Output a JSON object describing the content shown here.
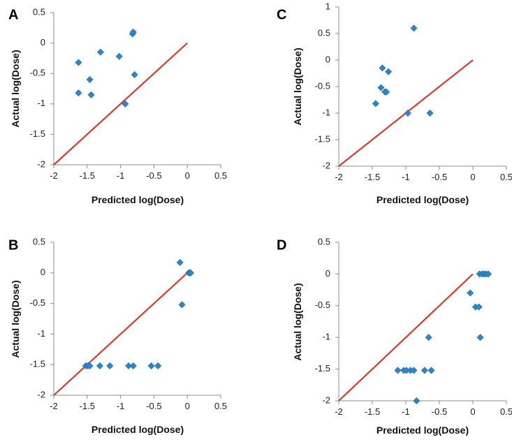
{
  "colors": {
    "points": "#2E86C8",
    "line": "#D93A30",
    "axis": "#8C8C8C",
    "text": "#222222"
  },
  "chart_data": [
    {
      "panel": "A",
      "type": "scatter",
      "xlabel": "Predicted log(Dose)",
      "ylabel": "Actual log(Dose)",
      "xlim": [
        -2,
        0.5
      ],
      "ylim": [
        -2,
        0.5
      ],
      "xticks": [
        "-2",
        "-1.5",
        "-1",
        "-0.5",
        "0",
        "0.5"
      ],
      "yticks": [
        "0.5",
        "0",
        "-0.5",
        "-1",
        "-1.5",
        "-2"
      ],
      "points": [
        [
          -1.63,
          -0.32
        ],
        [
          -1.63,
          -0.82
        ],
        [
          -1.46,
          -0.6
        ],
        [
          -1.44,
          -0.85
        ],
        [
          -1.3,
          -0.15
        ],
        [
          -1.02,
          -0.22
        ],
        [
          -0.93,
          -1.0
        ],
        [
          -0.82,
          0.15
        ],
        [
          -0.81,
          0.18
        ],
        [
          -0.79,
          -0.52
        ]
      ],
      "reference_line": [
        [
          -2,
          -2
        ],
        [
          0,
          0
        ]
      ]
    },
    {
      "panel": "B",
      "type": "scatter",
      "xlabel": "Predicted log(Dose)",
      "ylabel": "Actual log(Dose)",
      "xlim": [
        -2,
        0.5
      ],
      "ylim": [
        -2,
        0.5
      ],
      "xticks": [
        "-2",
        "-1.5",
        "-1",
        "-0.5",
        "0",
        "0.5"
      ],
      "yticks": [
        "0.5",
        "0",
        "-0.5",
        "-1",
        "-1.5",
        "-2"
      ],
      "points": [
        [
          -1.52,
          -1.52
        ],
        [
          -1.49,
          -1.52
        ],
        [
          -1.46,
          -1.52
        ],
        [
          -1.31,
          -1.52
        ],
        [
          -1.16,
          -1.52
        ],
        [
          -0.88,
          -1.52
        ],
        [
          -0.81,
          -1.52
        ],
        [
          -0.54,
          -1.52
        ],
        [
          -0.44,
          -1.52
        ],
        [
          -0.11,
          0.17
        ],
        [
          -0.08,
          -0.52
        ],
        [
          0.02,
          0.0
        ],
        [
          0.04,
          0.0
        ],
        [
          0.05,
          0.0
        ]
      ],
      "reference_line": [
        [
          -2,
          -2
        ],
        [
          0,
          0
        ]
      ]
    },
    {
      "panel": "C",
      "type": "scatter",
      "xlabel": "Predicted log(Dose)",
      "ylabel": "Actual log(Dose)",
      "xlim": [
        -2,
        0.5
      ],
      "ylim": [
        -2,
        1
      ],
      "xticks": [
        "-2",
        "-1.5",
        "-1",
        "-0.5",
        "0",
        "0.5"
      ],
      "yticks": [
        "1",
        "0.5",
        "0",
        "-0.5",
        "-1",
        "-1.5",
        "-2"
      ],
      "points": [
        [
          -1.45,
          -0.82
        ],
        [
          -1.37,
          -0.52
        ],
        [
          -1.35,
          -0.15
        ],
        [
          -1.31,
          -0.6
        ],
        [
          -1.29,
          -0.6
        ],
        [
          -1.26,
          -0.22
        ],
        [
          -0.97,
          -1.0
        ],
        [
          -0.88,
          0.6
        ],
        [
          -0.64,
          -1.0
        ]
      ],
      "reference_line": [
        [
          -2,
          -2
        ],
        [
          0,
          0
        ]
      ]
    },
    {
      "panel": "D",
      "type": "scatter",
      "xlabel": "Predicted log(Dose)",
      "ylabel": "Actual log(Dose)",
      "xlim": [
        -2,
        0.5
      ],
      "ylim": [
        -2,
        0.5
      ],
      "xticks": [
        "-2",
        "-1.5",
        "-1",
        "-0.5",
        "0",
        "0.5"
      ],
      "yticks": [
        "0.5",
        "0",
        "-0.5",
        "-1",
        "-1.5",
        "-2"
      ],
      "points": [
        [
          -1.12,
          -1.52
        ],
        [
          -1.03,
          -1.52
        ],
        [
          -0.99,
          -1.52
        ],
        [
          -0.93,
          -1.52
        ],
        [
          -0.88,
          -1.52
        ],
        [
          -0.84,
          -2.0
        ],
        [
          -0.72,
          -1.52
        ],
        [
          -0.66,
          -1.0
        ],
        [
          -0.62,
          -1.52
        ],
        [
          -0.04,
          -0.3
        ],
        [
          0.04,
          -0.52
        ],
        [
          0.09,
          -0.52
        ],
        [
          0.1,
          0.0
        ],
        [
          0.11,
          -1.0
        ],
        [
          0.14,
          0.0
        ],
        [
          0.17,
          0.0
        ],
        [
          0.2,
          0.0
        ],
        [
          0.23,
          0.0
        ]
      ],
      "reference_line": [
        [
          -2,
          -2
        ],
        [
          0,
          0
        ]
      ]
    }
  ]
}
